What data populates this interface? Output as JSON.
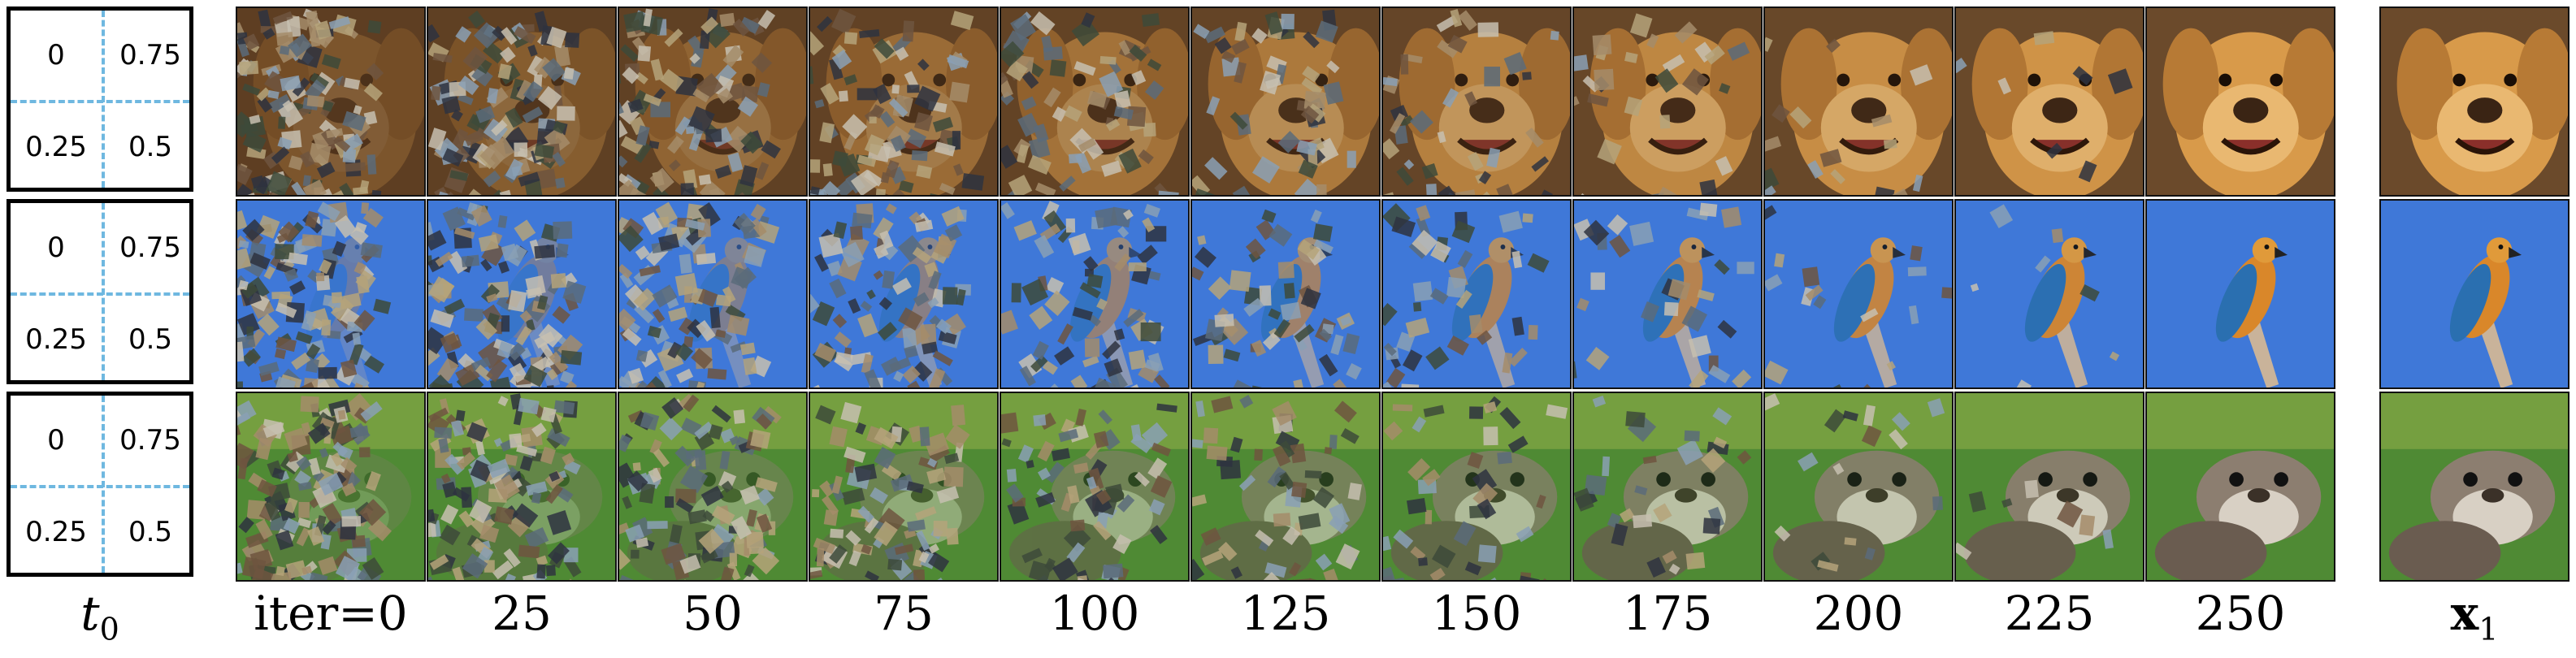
{
  "t0_panels": [
    {
      "cells": [
        "0",
        "0.75",
        "0.25",
        "0.5"
      ]
    },
    {
      "cells": [
        "0",
        "0.75",
        "0.25",
        "0.5"
      ]
    },
    {
      "cells": [
        "0",
        "0.75",
        "0.25",
        "0.5"
      ]
    }
  ],
  "labels": {
    "t0_symbol": "t",
    "t0_sub": "0",
    "iters": [
      "iter=0",
      "25",
      "50",
      "75",
      "100",
      "125",
      "150",
      "175",
      "200",
      "225",
      "250"
    ],
    "x1_symbol": "x",
    "x1_sub": "1"
  },
  "rows": [
    {
      "subject": "dog",
      "bg": "#6b4a2b",
      "fg": "#d89a4a",
      "accent": "#3a2414"
    },
    {
      "subject": "parrot",
      "bg": "#3f78d8",
      "fg": "#d9872a",
      "accent": "#2a6fb0"
    },
    {
      "subject": "otter",
      "bg": "#4f8a34",
      "fg": "#8c7e70",
      "accent": "#3b3128"
    }
  ],
  "noise_colors": [
    "#5a6b7a",
    "#a58c6a",
    "#3d4a3a",
    "#c7c0b0",
    "#2e3340",
    "#8aa0b5",
    "#6e5540",
    "#b5a37a"
  ]
}
